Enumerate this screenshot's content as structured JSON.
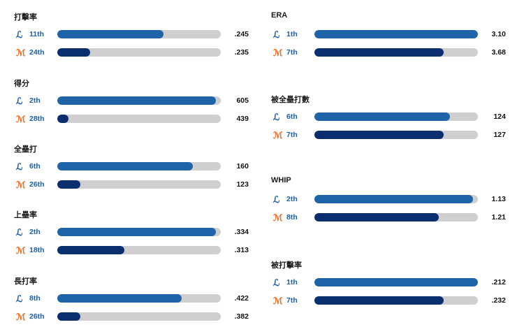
{
  "colors": {
    "la_bar": "#1f64a8",
    "ny_bar": "#0b2f6e",
    "track": "#cfcfcf",
    "la_logo": "#1d5fa3",
    "ny_logo": "#f26b21"
  },
  "chart_data": [
    {
      "type": "bar",
      "orientation": "horizontal",
      "title": "打擊率",
      "series": [
        {
          "team": "LA",
          "rank": "11th",
          "value_label": ".245",
          "fill_fraction": 0.65
        },
        {
          "team": "NY",
          "rank": "24th",
          "value_label": ".235",
          "fill_fraction": 0.2
        }
      ]
    },
    {
      "type": "bar",
      "orientation": "horizontal",
      "title": "得分",
      "series": [
        {
          "team": "LA",
          "rank": "2th",
          "value_label": "605",
          "fill_fraction": 0.97
        },
        {
          "team": "NY",
          "rank": "28th",
          "value_label": "439",
          "fill_fraction": 0.07
        }
      ]
    },
    {
      "type": "bar",
      "orientation": "horizontal",
      "title": "全壘打",
      "series": [
        {
          "team": "LA",
          "rank": "6th",
          "value_label": "160",
          "fill_fraction": 0.83
        },
        {
          "team": "NY",
          "rank": "26th",
          "value_label": "123",
          "fill_fraction": 0.14
        }
      ]
    },
    {
      "type": "bar",
      "orientation": "horizontal",
      "title": "上壘率",
      "series": [
        {
          "team": "LA",
          "rank": "2th",
          "value_label": ".334",
          "fill_fraction": 0.97
        },
        {
          "team": "NY",
          "rank": "18th",
          "value_label": ".313",
          "fill_fraction": 0.41
        }
      ]
    },
    {
      "type": "bar",
      "orientation": "horizontal",
      "title": "長打率",
      "series": [
        {
          "team": "LA",
          "rank": "8th",
          "value_label": ".422",
          "fill_fraction": 0.76
        },
        {
          "team": "NY",
          "rank": "26th",
          "value_label": ".382",
          "fill_fraction": 0.14
        }
      ]
    },
    {
      "type": "bar",
      "orientation": "horizontal",
      "title": "ERA",
      "series": [
        {
          "team": "LA",
          "rank": "1th",
          "value_label": "3.10",
          "fill_fraction": 1.0
        },
        {
          "team": "NY",
          "rank": "7th",
          "value_label": "3.68",
          "fill_fraction": 0.79
        }
      ]
    },
    {
      "type": "bar",
      "orientation": "horizontal",
      "title": "被全壘打數",
      "series": [
        {
          "team": "LA",
          "rank": "6th",
          "value_label": "124",
          "fill_fraction": 0.83
        },
        {
          "team": "NY",
          "rank": "7th",
          "value_label": "127",
          "fill_fraction": 0.79
        }
      ]
    },
    {
      "type": "bar",
      "orientation": "horizontal",
      "title": "WHIP",
      "series": [
        {
          "team": "LA",
          "rank": "2th",
          "value_label": "1.13",
          "fill_fraction": 0.97
        },
        {
          "team": "NY",
          "rank": "8th",
          "value_label": "1.21",
          "fill_fraction": 0.76
        }
      ]
    },
    {
      "type": "bar",
      "orientation": "horizontal",
      "title": "被打擊率",
      "series": [
        {
          "team": "LA",
          "rank": "1th",
          "value_label": ".212",
          "fill_fraction": 1.0
        },
        {
          "team": "NY",
          "rank": "7th",
          "value_label": ".232",
          "fill_fraction": 0.79
        }
      ]
    }
  ]
}
